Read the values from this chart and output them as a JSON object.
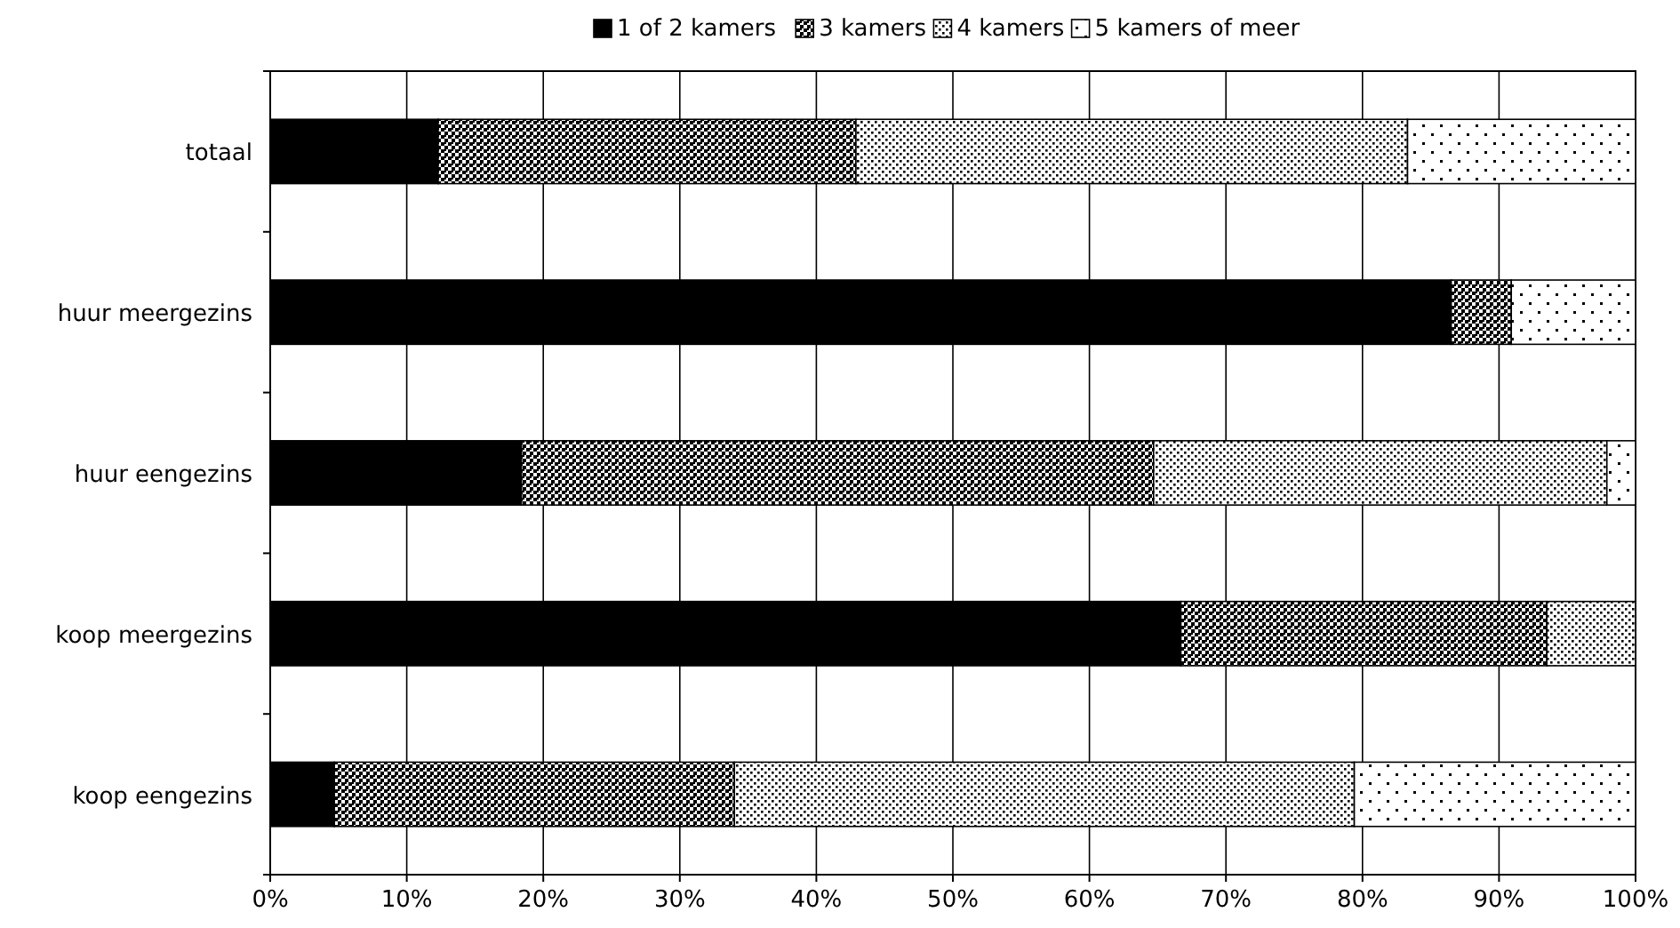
{
  "chart_data": {
    "type": "bar",
    "orientation": "horizontal",
    "stacked": true,
    "categories": [
      "totaal",
      "huur meergezins",
      "huur eengezins",
      "koop meergezins",
      "koop eengezins"
    ],
    "series": [
      {
        "name": "1 of 2 kamers",
        "color": "#000000",
        "values": [
          12.3,
          86.5,
          18.4,
          66.7,
          4.7
        ]
      },
      {
        "name": "3 kamers",
        "color": "#000000",
        "values": [
          30.6,
          4.4,
          46.3,
          26.8,
          29.3
        ]
      },
      {
        "name": "4 kamers",
        "color": "#000000",
        "values": [
          40.4,
          0,
          33.2,
          6.5,
          45.4
        ]
      },
      {
        "name": "5 kamers of meer",
        "color": "#000000",
        "values": [
          16.7,
          9.1,
          2.1,
          0,
          20.6
        ]
      }
    ],
    "xlim": [
      0,
      100
    ],
    "xticks": [
      {
        "value": 0,
        "label": "0%"
      },
      {
        "value": 10,
        "label": "10%"
      },
      {
        "value": 20,
        "label": "20%"
      },
      {
        "value": 30,
        "label": "30%"
      },
      {
        "value": 40,
        "label": "40%"
      },
      {
        "value": 50,
        "label": "50%"
      },
      {
        "value": 60,
        "label": "60%"
      },
      {
        "value": 70,
        "label": "70%"
      },
      {
        "value": 80,
        "label": "80%"
      },
      {
        "value": 90,
        "label": "90%"
      },
      {
        "value": 100,
        "label": "100%"
      }
    ],
    "grid": "x",
    "legend": "top"
  }
}
